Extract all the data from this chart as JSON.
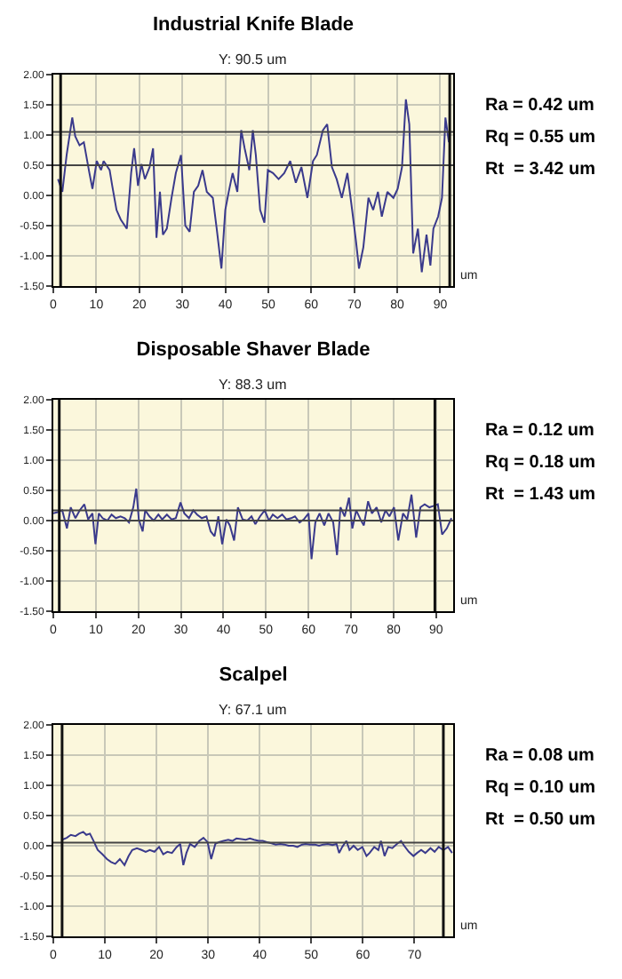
{
  "chart_data": [
    {
      "type": "line",
      "title": "Industrial Knife Blade",
      "subtitle": "Y: 90.5 um",
      "xlabel": "um",
      "annotations": [
        "Ra = 0.42 um",
        "Rq = 0.55 um",
        "Rt  = 3.42 um"
      ],
      "xlim": [
        0,
        93
      ],
      "xticks": [
        0,
        10,
        20,
        30,
        40,
        50,
        60,
        70,
        80,
        90
      ],
      "ylim": [
        -1.5,
        2
      ],
      "yticks": [
        {
          "value": 2,
          "label": "2.00"
        },
        {
          "value": 1.5,
          "label": "1.50"
        },
        {
          "value": 1,
          "label": "1.00"
        },
        {
          "value": 0.5,
          "label": "0.50"
        },
        {
          "value": 0,
          "label": "0.00"
        },
        {
          "value": -0.5,
          "label": "-0.50"
        },
        {
          "value": -1,
          "label": "-1.00"
        },
        {
          "value": -1.5,
          "label": "-1.50"
        }
      ],
      "grid": true,
      "ref_lines": [
        {
          "axis": "y",
          "value": 1.05,
          "color": "#444444"
        },
        {
          "axis": "y",
          "value": 0.5,
          "color": "#444444"
        },
        {
          "axis": "x",
          "value": 1.7,
          "color": "#111111"
        },
        {
          "axis": "x",
          "value": 92.2,
          "color": "#111111"
        }
      ],
      "series": [
        {
          "color": "#3a3a8c",
          "x": [
            1.1,
            2.1,
            3.1,
            4.4,
            5.1,
            6.1,
            7.1,
            8.4,
            9.1,
            10.1,
            11.1,
            11.7,
            13.1,
            13.7,
            14.7,
            15.7,
            17.1,
            18.1,
            18.8,
            19.7,
            20.5,
            21.3,
            22.4,
            23.2,
            24.0,
            24.8,
            25.5,
            26.4,
            27.5,
            28.5,
            29.7,
            30.7,
            31.7,
            32.7,
            33.7,
            34.7,
            35.7,
            37.1,
            38.0,
            39.1,
            40.0,
            40.8,
            41.7,
            42.8,
            43.7,
            44.5,
            45.6,
            46.4,
            47.1,
            48.1,
            49.1,
            49.9,
            51.1,
            52.4,
            53.7,
            55.1,
            56.4,
            57.7,
            59.1,
            60.4,
            61.3,
            62.7,
            63.7,
            64.8,
            65.9,
            67.1,
            68.4,
            69.5,
            70.4,
            71.1,
            72.1,
            73.3,
            74.4,
            75.5,
            76.4,
            77.7,
            79.1,
            80.1,
            81.1,
            82.0,
            82.8,
            83.7,
            84.8,
            85.7,
            86.8,
            87.7,
            88.4,
            89.5,
            90.4,
            91.2,
            92.0
          ],
          "values": [
            0.27,
            0.06,
            0.67,
            1.29,
            0.98,
            0.83,
            0.88,
            0.37,
            0.11,
            0.57,
            0.42,
            0.57,
            0.42,
            0.16,
            -0.24,
            -0.4,
            -0.55,
            0.37,
            0.78,
            0.16,
            0.52,
            0.27,
            0.47,
            0.78,
            -0.7,
            0.06,
            -0.65,
            -0.55,
            -0.04,
            0.37,
            0.67,
            -0.5,
            -0.6,
            0.06,
            0.16,
            0.42,
            0.06,
            -0.04,
            -0.55,
            -1.21,
            -0.24,
            0.06,
            0.37,
            0.06,
            1.08,
            0.78,
            0.42,
            1.08,
            0.67,
            -0.24,
            -0.45,
            0.42,
            0.37,
            0.27,
            0.37,
            0.57,
            0.21,
            0.47,
            -0.04,
            0.57,
            0.67,
            1.08,
            1.18,
            0.47,
            0.27,
            -0.04,
            0.37,
            -0.24,
            -0.76,
            -1.21,
            -0.86,
            -0.04,
            -0.24,
            0.06,
            -0.35,
            0.06,
            -0.04,
            0.11,
            0.47,
            1.59,
            1.18,
            -0.96,
            -0.55,
            -1.27,
            -0.65,
            -1.16,
            -0.55,
            -0.35,
            -0.04,
            1.29,
            0.88
          ]
        }
      ]
    },
    {
      "type": "line",
      "title": "Disposable Shaver Blade",
      "subtitle": "Y: 88.3 um",
      "xlabel": "um",
      "annotations": [
        "Ra = 0.12 um",
        "Rq = 0.18 um",
        "Rt  = 1.43 um"
      ],
      "xlim": [
        0,
        94
      ],
      "xticks": [
        0,
        10,
        20,
        30,
        40,
        50,
        60,
        70,
        80,
        90
      ],
      "ylim": [
        -1.5,
        2
      ],
      "yticks": [
        {
          "value": 2,
          "label": "2.00"
        },
        {
          "value": 1.5,
          "label": "1.50"
        },
        {
          "value": 1,
          "label": "1.00"
        },
        {
          "value": 0.5,
          "label": "0.50"
        },
        {
          "value": 0,
          "label": "0.00"
        },
        {
          "value": -0.5,
          "label": "-0.50"
        },
        {
          "value": -1,
          "label": "-1.00"
        },
        {
          "value": -1.5,
          "label": "-1.50"
        }
      ],
      "grid": true,
      "ref_lines": [
        {
          "axis": "y",
          "value": 0.17,
          "color": "#444444"
        },
        {
          "axis": "y",
          "value": 0,
          "color": "#444444"
        },
        {
          "axis": "x",
          "value": 1.4,
          "color": "#111111"
        },
        {
          "axis": "x",
          "value": 89.7,
          "color": "#111111"
        }
      ],
      "series": [
        {
          "color": "#3a3a8c",
          "x": [
            0.0,
            1.0,
            2.1,
            3.2,
            4.1,
            5.2,
            6.2,
            7.3,
            8.2,
            9.2,
            9.9,
            10.7,
            11.6,
            12.7,
            13.7,
            14.7,
            15.8,
            16.8,
            17.8,
            18.8,
            19.5,
            20.1,
            21.0,
            21.6,
            22.6,
            23.6,
            24.7,
            25.6,
            26.7,
            27.8,
            28.8,
            29.9,
            30.8,
            31.9,
            32.9,
            33.8,
            34.9,
            36.0,
            37.0,
            37.9,
            38.8,
            39.7,
            40.7,
            41.5,
            42.5,
            43.4,
            44.5,
            45.6,
            46.6,
            47.5,
            48.6,
            49.7,
            50.7,
            51.6,
            52.7,
            53.8,
            54.8,
            55.9,
            56.8,
            57.9,
            58.9,
            60.0,
            60.7,
            61.6,
            62.6,
            63.7,
            64.7,
            65.8,
            66.7,
            67.5,
            68.5,
            69.5,
            70.3,
            71.2,
            72.2,
            73.0,
            74.0,
            74.9,
            76.0,
            77.1,
            78.1,
            79.0,
            80.1,
            81.1,
            82.2,
            83.2,
            84.2,
            85.3,
            86.3,
            87.3,
            88.4,
            89.3,
            90.4,
            91.4,
            92.5,
            93.6
          ],
          "values": [
            0.12,
            0.14,
            0.17,
            -0.13,
            0.22,
            0.04,
            0.17,
            0.27,
            0.02,
            0.12,
            -0.39,
            0.12,
            0.04,
            0.0,
            0.1,
            0.04,
            0.07,
            0.04,
            -0.03,
            0.22,
            0.53,
            0.02,
            -0.18,
            0.17,
            0.07,
            0.0,
            0.1,
            0.02,
            0.1,
            0.02,
            0.04,
            0.3,
            0.12,
            0.04,
            0.17,
            0.1,
            0.04,
            0.07,
            -0.18,
            -0.26,
            0.07,
            -0.39,
            0.02,
            -0.08,
            -0.33,
            0.22,
            0.02,
            0.0,
            0.07,
            -0.06,
            0.07,
            0.17,
            0.0,
            0.1,
            0.04,
            0.1,
            0.02,
            0.04,
            0.07,
            -0.03,
            0.02,
            0.12,
            -0.64,
            -0.03,
            0.12,
            -0.08,
            0.12,
            -0.03,
            -0.57,
            0.22,
            0.07,
            0.38,
            -0.13,
            0.17,
            0.02,
            -0.08,
            0.32,
            0.12,
            0.22,
            -0.03,
            0.17,
            0.07,
            0.22,
            -0.33,
            0.12,
            0.02,
            0.43,
            -0.28,
            0.22,
            0.27,
            0.22,
            0.24,
            0.27,
            -0.23,
            -0.13,
            0.04
          ]
        }
      ]
    },
    {
      "type": "line",
      "title": "Scalpel",
      "subtitle": "Y: 67.1 um",
      "xlabel": "um",
      "annotations": [
        "Ra = 0.08 um",
        "Rq = 0.10 um",
        "Rt  = 0.50 um"
      ],
      "xlim": [
        0,
        77.5
      ],
      "xticks": [
        0,
        10,
        20,
        30,
        40,
        50,
        60,
        70
      ],
      "ylim": [
        -1.5,
        2
      ],
      "yticks": [
        {
          "value": 2,
          "label": "2.00"
        },
        {
          "value": 1.5,
          "label": "1.50"
        },
        {
          "value": 1,
          "label": "1.00"
        },
        {
          "value": 0.5,
          "label": "0.50"
        },
        {
          "value": 0,
          "label": "0.00"
        },
        {
          "value": -0.5,
          "label": "-0.50"
        },
        {
          "value": -1,
          "label": "-1.00"
        },
        {
          "value": -1.5,
          "label": "-1.50"
        }
      ],
      "grid": true,
      "ref_lines": [
        {
          "axis": "y",
          "value": 0.05,
          "color": "#444444"
        },
        {
          "axis": "x",
          "value": 1.7,
          "color": "#111111"
        },
        {
          "axis": "x",
          "value": 75.6,
          "color": "#111111"
        }
      ],
      "series": [
        {
          "color": "#3a3a8c",
          "x": [
            1.7,
            2.6,
            3.4,
            4.3,
            5.0,
            5.8,
            6.4,
            7.1,
            7.8,
            8.6,
            9.5,
            10.4,
            11.2,
            12.0,
            12.9,
            13.8,
            14.6,
            15.3,
            16.2,
            17.1,
            17.9,
            18.7,
            19.6,
            20.5,
            21.3,
            22.1,
            23.0,
            23.9,
            24.6,
            25.2,
            25.8,
            26.5,
            27.4,
            28.3,
            29.1,
            29.9,
            30.6,
            31.4,
            32.1,
            33.0,
            33.9,
            34.7,
            35.5,
            36.4,
            37.3,
            38.1,
            38.9,
            39.8,
            40.6,
            41.4,
            42.3,
            43.1,
            44.0,
            44.8,
            45.6,
            46.5,
            47.3,
            48.2,
            48.9,
            49.8,
            50.7,
            51.5,
            52.3,
            53.2,
            54.1,
            54.9,
            55.4,
            56.0,
            56.8,
            57.4,
            58.2,
            59.0,
            59.9,
            60.7,
            61.3,
            62.2,
            63.0,
            63.5,
            64.2,
            64.9,
            65.7,
            66.6,
            67.4,
            68.0,
            68.9,
            69.8,
            70.5,
            71.3,
            72.1,
            73.1,
            73.9,
            74.7,
            75.6,
            76.5,
            77.3
          ],
          "values": [
            0.1,
            0.13,
            0.18,
            0.16,
            0.2,
            0.23,
            0.18,
            0.2,
            0.08,
            -0.07,
            -0.14,
            -0.22,
            -0.27,
            -0.3,
            -0.22,
            -0.32,
            -0.17,
            -0.07,
            -0.04,
            -0.07,
            -0.1,
            -0.07,
            -0.1,
            -0.02,
            -0.14,
            -0.1,
            -0.12,
            -0.02,
            0.03,
            -0.32,
            -0.12,
            0.03,
            -0.02,
            0.08,
            0.13,
            0.06,
            -0.22,
            0.03,
            0.06,
            0.08,
            0.1,
            0.08,
            0.12,
            0.11,
            0.1,
            0.12,
            0.1,
            0.08,
            0.08,
            0.06,
            0.04,
            0.02,
            0.03,
            0.02,
            0.0,
            0.0,
            -0.02,
            0.02,
            0.03,
            0.02,
            0.02,
            0.0,
            0.02,
            0.03,
            0.01,
            0.03,
            -0.12,
            -0.02,
            0.08,
            -0.07,
            0.0,
            -0.07,
            -0.02,
            -0.17,
            -0.12,
            -0.02,
            -0.07,
            0.08,
            -0.17,
            -0.02,
            -0.04,
            0.03,
            0.08,
            0.0,
            -0.1,
            -0.17,
            -0.12,
            -0.07,
            -0.12,
            -0.04,
            -0.1,
            -0.02,
            -0.07,
            -0.02,
            -0.12
          ]
        }
      ]
    }
  ]
}
